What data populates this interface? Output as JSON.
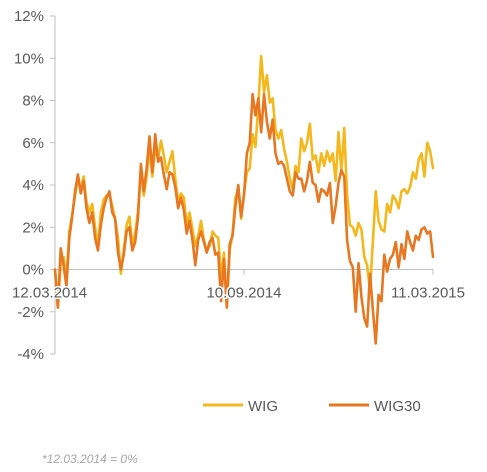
{
  "chart_data": {
    "type": "line",
    "title": "",
    "xlabel": "",
    "ylabel": "",
    "ylim": [
      -4,
      12
    ],
    "y_ticks": [
      -4,
      -2,
      0,
      2,
      4,
      6,
      8,
      10,
      12
    ],
    "y_tick_labels": [
      "-4%",
      "-2%",
      "0%",
      "2%",
      "4%",
      "6%",
      "8%",
      "10%",
      "12%"
    ],
    "x_tick_labels": [
      "12.03.2014",
      "10.09.2014",
      "11.03.2015"
    ],
    "x_tick_positions": [
      0,
      0.5,
      1
    ],
    "grid": false,
    "legend_position": "bottom",
    "series": [
      {
        "name": "WIG",
        "color": "#f5b81c",
        "values": [
          0.0,
          -1.8,
          0.3,
          0.6,
          -0.5,
          1.8,
          2.6,
          3.5,
          4.3,
          3.8,
          4.4,
          3.2,
          2.7,
          3.1,
          2.0,
          1.1,
          2.7,
          3.3,
          3.5,
          3.6,
          3.0,
          2.4,
          1.5,
          -0.2,
          0.9,
          2.1,
          2.5,
          1.2,
          1.7,
          2.8,
          4.7,
          3.5,
          4.4,
          5.7,
          4.4,
          5.8,
          5.2,
          6.1,
          5.4,
          4.6,
          5.1,
          5.6,
          4.3,
          3.2,
          3.6,
          3.4,
          2.1,
          2.7,
          1.9,
          1.1,
          1.6,
          2.3,
          1.4,
          0.9,
          1.1,
          1.8,
          1.6,
          1.5,
          -0.4,
          0.8,
          -1.8,
          0.9,
          1.7,
          3.4,
          3.8,
          2.4,
          3.6,
          4.6,
          4.8,
          6.4,
          5.8,
          7.8,
          10.1,
          8.4,
          9.2,
          7.9,
          8.1,
          6.6,
          6.2,
          6.6,
          5.7,
          5.1,
          4.3,
          3.8,
          4.9,
          4.6,
          6.2,
          5.6,
          6.0,
          6.9,
          5.2,
          5.4,
          4.6,
          5.5,
          4.9,
          5.6,
          5.1,
          5.5,
          4.2,
          6.5,
          4.6,
          6.7,
          3.5,
          2.1,
          2.0,
          1.6,
          2.2,
          1.9,
          0.6,
          0.2,
          -1.0,
          1.3,
          3.7,
          2.3,
          1.9,
          1.8,
          3.1,
          2.7,
          3.5,
          3.3,
          2.9,
          3.7,
          3.8,
          3.6,
          3.9,
          4.6,
          4.3,
          5.2,
          5.5,
          4.4,
          6.0,
          5.6,
          4.8
        ]
      },
      {
        "name": "WIG30",
        "color": "#e87722",
        "values": [
          0.0,
          -1.8,
          1.0,
          0.2,
          -0.8,
          1.5,
          2.5,
          3.7,
          4.5,
          3.6,
          4.2,
          2.9,
          2.2,
          2.7,
          1.5,
          0.9,
          2.1,
          2.9,
          3.4,
          3.7,
          2.7,
          2.4,
          0.8,
          0.0,
          0.7,
          1.8,
          2.0,
          0.9,
          1.3,
          2.5,
          5.0,
          3.7,
          4.8,
          6.3,
          4.6,
          6.4,
          5.1,
          5.3,
          4.5,
          3.8,
          4.6,
          4.5,
          3.9,
          2.9,
          3.4,
          2.8,
          1.7,
          2.3,
          1.4,
          0.2,
          1.4,
          1.8,
          1.3,
          0.8,
          1.3,
          1.5,
          0.7,
          0.8,
          -1.5,
          0.5,
          -1.8,
          1.2,
          1.6,
          3.0,
          4.0,
          2.5,
          3.5,
          5.5,
          6.0,
          8.3,
          7.3,
          8.1,
          6.5,
          8.3,
          7.0,
          6.2,
          7.1,
          5.5,
          5.0,
          5.1,
          4.9,
          4.3,
          3.7,
          3.5,
          4.6,
          4.3,
          4.3,
          3.7,
          4.2,
          5.1,
          4.1,
          4.0,
          3.2,
          3.8,
          3.7,
          3.5,
          4.1,
          2.2,
          3.0,
          4.1,
          4.7,
          4.4,
          1.4,
          0.4,
          0.1,
          -2.0,
          0.3,
          -1.3,
          -2.3,
          -2.7,
          -0.2,
          -1.9,
          -3.5,
          -1.2,
          -1.5,
          0.7,
          -0.1,
          0.5,
          0.7,
          1.3,
          0.1,
          1.2,
          0.5,
          1.8,
          1.3,
          0.9,
          1.6,
          1.4,
          1.9,
          2.0,
          1.7,
          1.8,
          0.6
        ]
      }
    ]
  },
  "legend": {
    "items": [
      {
        "label": "WIG",
        "color": "#f5b81c"
      },
      {
        "label": "WIG30",
        "color": "#e87722"
      }
    ]
  },
  "footnote": "*12.03.2014 = 0%"
}
